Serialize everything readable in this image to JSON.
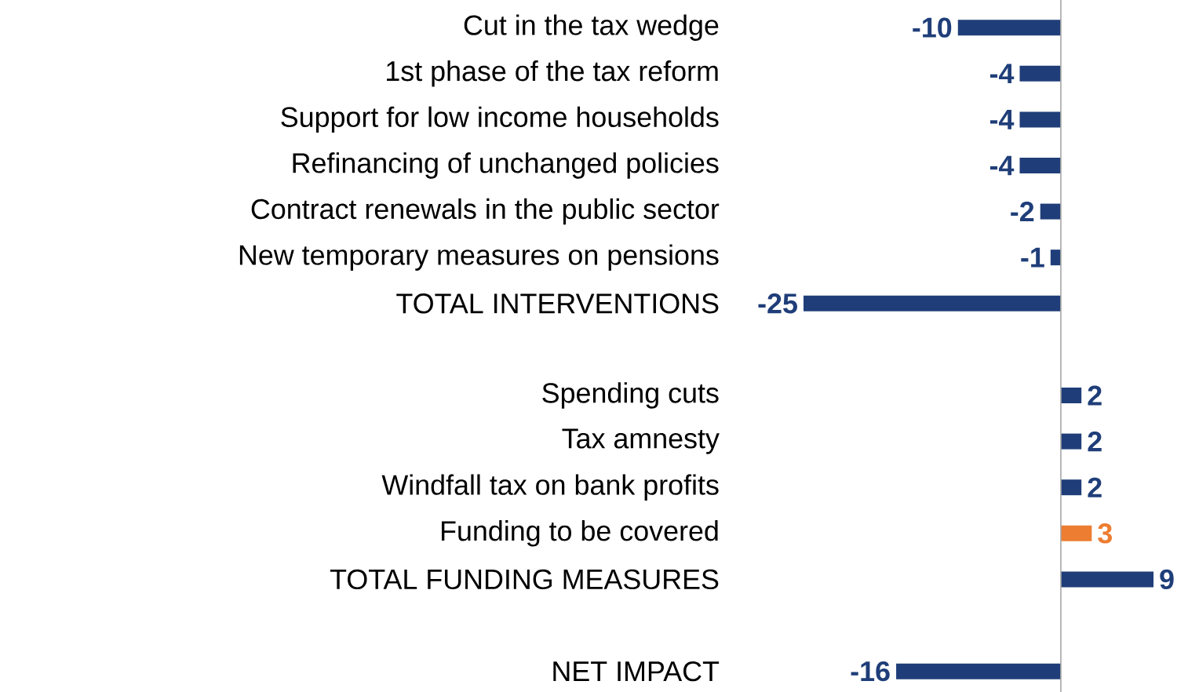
{
  "chart_data": {
    "type": "bar",
    "orientation": "horizontal",
    "categories": [
      "Cut in the tax wedge",
      "1st phase of the tax reform",
      "Support for low income households",
      "Refinancing of unchanged policies",
      "Contract renewals in the public sector",
      "New temporary measures on pensions",
      "TOTAL INTERVENTIONS",
      null,
      "Spending cuts",
      "Tax amnesty",
      "Windfall tax on bank profits",
      "Funding to be covered",
      "TOTAL FUNDING MEASURES",
      null,
      "NET IMPACT"
    ],
    "values": [
      -10,
      -4,
      -4,
      -4,
      -2,
      -1,
      -25,
      null,
      2,
      2,
      2,
      3,
      9,
      null,
      -16
    ],
    "colors": [
      "#1f3e79",
      "#1f3e79",
      "#1f3e79",
      "#1f3e79",
      "#1f3e79",
      "#1f3e79",
      "#1f3e79",
      null,
      "#1f3e79",
      "#1f3e79",
      "#1f3e79",
      "#ed7d31",
      "#1f3e79",
      null,
      "#1f3e79"
    ],
    "xlim": [
      -25,
      9
    ],
    "data_labels": true,
    "tick_labels": "y"
  }
}
